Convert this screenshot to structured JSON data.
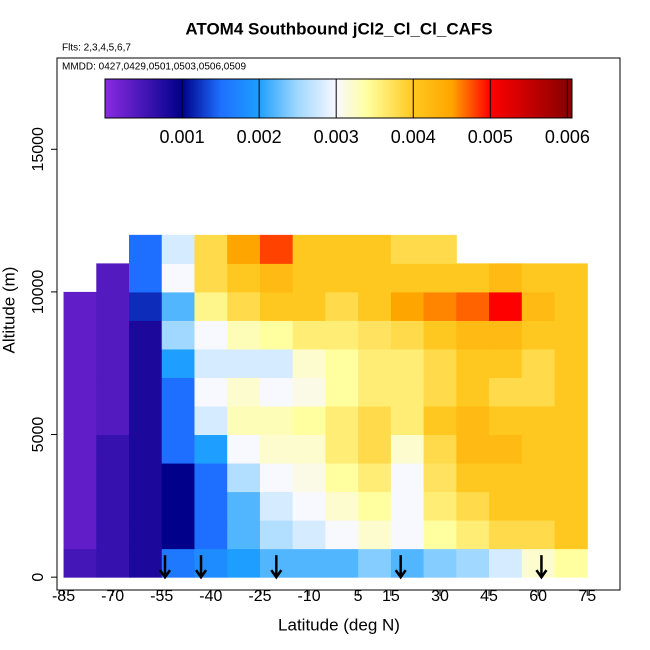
{
  "chart_data": {
    "type": "heatmap",
    "title": "ATOM4 Southbound jCl2_Cl_Cl_CAFS",
    "subtitle": "Flts: 2,3,4,5,6,7",
    "annotation": "MMDD: 0427,0429,0501,0503,0506,0509",
    "xlabel": "Latitude (deg N)",
    "ylabel": "Altitude (m)",
    "xlim": [
      -87,
      85
    ],
    "ylim": [
      -450,
      18200
    ],
    "xticks": [
      -85,
      -70,
      -55,
      -40,
      -25,
      -10,
      5,
      15,
      30,
      45,
      60,
      75
    ],
    "yticks": [
      0,
      5000,
      10000,
      15000
    ],
    "x_bins": [
      -85,
      -75,
      -65,
      -55,
      -45,
      -35,
      -25,
      -15,
      -5,
      5,
      15,
      25,
      35,
      45,
      55,
      65,
      75
    ],
    "y_bins": [
      0,
      1000,
      2000,
      3000,
      4000,
      5000,
      6000,
      7000,
      8000,
      9000,
      10000,
      11000,
      12000
    ],
    "z": [
      [
        0.0005,
        0.0006,
        0.0008,
        0.0016,
        0.0018,
        0.002,
        0.0022,
        0.0022,
        0.0022,
        0.0024,
        0.0022,
        0.0024,
        0.0025,
        0.0028,
        0.0032,
        0.0034
      ],
      [
        0.0003,
        0.0006,
        0.0008,
        0.001,
        0.0015,
        0.0022,
        0.0026,
        0.0028,
        0.003,
        0.0032,
        0.003,
        0.0034,
        0.0036,
        0.0038,
        0.0038,
        0.004
      ],
      [
        0.0003,
        0.0006,
        0.0008,
        0.001,
        0.0015,
        0.0022,
        0.0028,
        0.003,
        0.0032,
        0.0034,
        0.003,
        0.0036,
        0.0038,
        0.004,
        0.004,
        0.004
      ],
      [
        0.0003,
        0.0006,
        0.0008,
        0.001,
        0.0015,
        0.0026,
        0.003,
        0.0031,
        0.0034,
        0.0036,
        0.003,
        0.0037,
        0.004,
        0.004,
        0.004,
        0.004
      ],
      [
        0.0003,
        0.0006,
        0.0008,
        0.0015,
        0.002,
        0.003,
        0.0032,
        0.0032,
        0.0036,
        0.0038,
        0.0032,
        0.0038,
        0.0042,
        0.0042,
        0.004,
        0.004
      ],
      [
        0.0003,
        0.0004,
        0.0008,
        0.0015,
        0.0028,
        0.0033,
        0.0033,
        0.0034,
        0.0036,
        0.0038,
        0.0036,
        0.004,
        0.0042,
        0.004,
        0.004,
        0.004
      ],
      [
        0.0003,
        0.0004,
        0.0008,
        0.0015,
        0.003,
        0.0032,
        0.003,
        0.0031,
        0.0034,
        0.0036,
        0.0036,
        0.0038,
        0.004,
        0.0038,
        0.0038,
        0.004
      ],
      [
        0.0003,
        0.0004,
        0.0008,
        0.002,
        0.0028,
        0.0028,
        0.0028,
        0.0032,
        0.0034,
        0.0036,
        0.0036,
        0.0038,
        0.004,
        0.004,
        0.0038,
        0.004
      ],
      [
        0.0003,
        0.0004,
        0.0008,
        0.0025,
        0.003,
        0.0033,
        0.0034,
        0.0036,
        0.0036,
        0.0037,
        0.0038,
        0.004,
        0.0042,
        0.0042,
        0.004,
        0.004
      ],
      [
        0.0003,
        0.0004,
        0.0012,
        0.0022,
        0.0035,
        0.0038,
        0.004,
        0.004,
        0.0038,
        0.004,
        0.0045,
        0.0046,
        0.0047,
        0.005,
        0.0042,
        0.004
      ],
      [
        null,
        0.0004,
        0.0015,
        0.003,
        0.0038,
        0.004,
        0.0042,
        0.004,
        0.004,
        0.004,
        0.004,
        0.004,
        0.004,
        0.0042,
        0.004,
        0.004
      ],
      [
        null,
        null,
        0.0015,
        0.0028,
        0.0038,
        0.0045,
        0.0048,
        0.004,
        0.004,
        0.004,
        0.0038,
        0.0038,
        null,
        null,
        null,
        null
      ]
    ],
    "clim": [
      0,
      0.00606
    ],
    "cticks": [
      0.001,
      0.002,
      0.003,
      0.004,
      0.005,
      0.006
    ],
    "colorscale": [
      [
        0,
        "#8a2be2"
      ],
      [
        0.001,
        "#00008b"
      ],
      [
        0.0015,
        "#1e6fff"
      ],
      [
        0.002,
        "#1e9fff"
      ],
      [
        0.0025,
        "#a0d8ff"
      ],
      [
        0.003,
        "#f8f8ff"
      ],
      [
        0.0034,
        "#ffffa0"
      ],
      [
        0.004,
        "#ffc820"
      ],
      [
        0.0045,
        "#ffa500"
      ],
      [
        0.005,
        "#ff0000"
      ],
      [
        0.006,
        "#8b0000"
      ]
    ],
    "arrow_lats": [
      -54,
      -43,
      -20,
      18,
      61
    ]
  }
}
